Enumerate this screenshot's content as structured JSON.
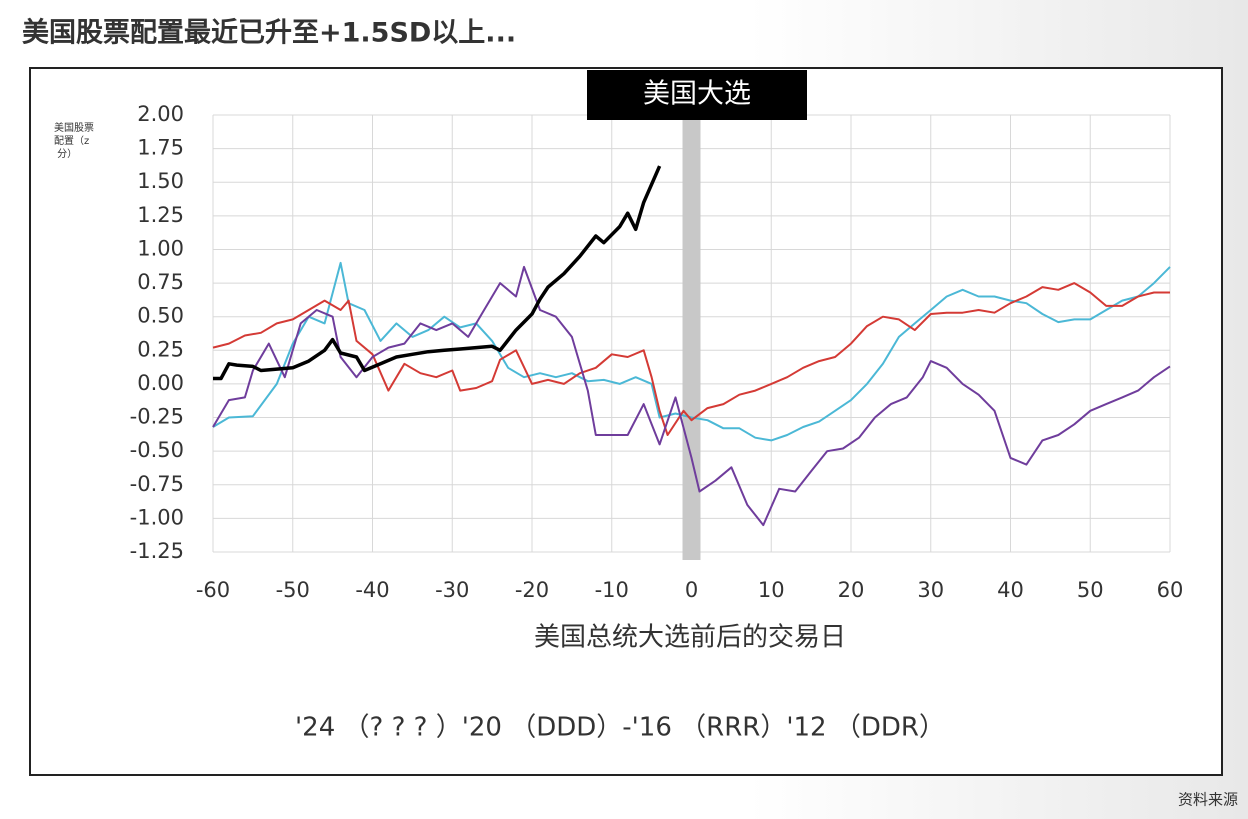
{
  "chart_data": {
    "type": "line",
    "title": "美国股票配置最近已升至+1.5SD以上...",
    "ylabel": "美国股票配置（z 分）",
    "xlabel": "美国总统大选前后的交易日",
    "annotation": "美国大选",
    "legend_text": "'24 （? ? ? ）'20 （DDD）-'16 （RRR）'12 （DDR）",
    "source": "资料来源",
    "xlim": [
      -60,
      60
    ],
    "xticks": [
      -60,
      -50,
      -40,
      -30,
      -20,
      -10,
      0,
      10,
      20,
      30,
      40,
      50,
      60
    ],
    "ylim": [
      -1.25,
      2.0
    ],
    "yticks": [
      {
        "value": 2.0,
        "label": "2.00"
      },
      {
        "value": 1.75,
        "label": "1.75"
      },
      {
        "value": 1.5,
        "label": "1.50"
      },
      {
        "value": 1.25,
        "label": "1.25"
      },
      {
        "value": 1.0,
        "label": "1.00"
      },
      {
        "value": 0.75,
        "label": "0.75"
      },
      {
        "value": 0.5,
        "label": "0.50"
      },
      {
        "value": 0.25,
        "label": "0.25"
      },
      {
        "value": 0,
        "label": "0.00"
      },
      {
        "value": -0.25,
        "label": "-0.25"
      },
      {
        "value": -0.5,
        "label": "-0.50"
      },
      {
        "value": -0.75,
        "label": "-0.75"
      },
      {
        "value": -1.0,
        "label": "-1.00"
      },
      {
        "value": -1.25,
        "label": "-1.25"
      }
    ],
    "grid": true,
    "series": [
      {
        "color": "#4bb8d6",
        "x": [
          -60,
          -58,
          -55,
          -52,
          -50,
          -48,
          -46,
          -44,
          -43,
          -41,
          -39,
          -37,
          -35,
          -33,
          -31,
          -29,
          -27,
          -25,
          -23,
          -21,
          -19,
          -17,
          -15,
          -13,
          -11,
          -9,
          -7,
          -5,
          -4,
          -2,
          0,
          2,
          4,
          6,
          8,
          10,
          12,
          14,
          16,
          18,
          20,
          22,
          24,
          26,
          28,
          30,
          32,
          34,
          36,
          38,
          40,
          42,
          44,
          46,
          48,
          50,
          52,
          54,
          56,
          58,
          60
        ],
        "values": [
          -0.32,
          -0.25,
          -0.24,
          0.0,
          0.3,
          0.5,
          0.45,
          0.9,
          0.6,
          0.55,
          0.32,
          0.45,
          0.35,
          0.4,
          0.5,
          0.42,
          0.45,
          0.32,
          0.12,
          0.05,
          0.08,
          0.05,
          0.08,
          0.02,
          0.03,
          0.0,
          0.05,
          0.0,
          -0.25,
          -0.22,
          -0.25,
          -0.27,
          -0.33,
          -0.33,
          -0.4,
          -0.42,
          -0.38,
          -0.32,
          -0.28,
          -0.2,
          -0.12,
          0.0,
          0.15,
          0.35,
          0.45,
          0.55,
          0.65,
          0.7,
          0.65,
          0.65,
          0.62,
          0.6,
          0.52,
          0.46,
          0.48,
          0.48,
          0.55,
          0.62,
          0.65,
          0.75,
          0.87
        ]
      },
      {
        "color": "#d43a35",
        "x": [
          -60,
          -58,
          -56,
          -54,
          -52,
          -50,
          -48,
          -46,
          -44,
          -43,
          -42,
          -40,
          -38,
          -36,
          -34,
          -32,
          -30,
          -29,
          -27,
          -25,
          -24,
          -22,
          -20,
          -18,
          -16,
          -14,
          -12,
          -10,
          -8,
          -6,
          -5,
          -4,
          -3,
          -1,
          0,
          2,
          4,
          6,
          8,
          10,
          12,
          14,
          16,
          18,
          20,
          22,
          24,
          26,
          28,
          30,
          32,
          34,
          36,
          38,
          40,
          42,
          44,
          46,
          48,
          50,
          52,
          54,
          56,
          58,
          60
        ],
        "values": [
          0.27,
          0.3,
          0.36,
          0.38,
          0.45,
          0.48,
          0.55,
          0.62,
          0.55,
          0.62,
          0.32,
          0.22,
          -0.05,
          0.15,
          0.08,
          0.05,
          0.1,
          -0.05,
          -0.03,
          0.02,
          0.18,
          0.25,
          0.0,
          0.03,
          0.0,
          0.08,
          0.12,
          0.22,
          0.2,
          0.25,
          0.05,
          -0.2,
          -0.38,
          -0.2,
          -0.27,
          -0.18,
          -0.15,
          -0.08,
          -0.05,
          0.0,
          0.05,
          0.12,
          0.17,
          0.2,
          0.3,
          0.43,
          0.5,
          0.48,
          0.4,
          0.52,
          0.53,
          0.53,
          0.55,
          0.53,
          0.6,
          0.65,
          0.72,
          0.7,
          0.75,
          0.68,
          0.58,
          0.58,
          0.65,
          0.68,
          0.68
        ]
      },
      {
        "color": "#6f3d9c",
        "x": [
          -60,
          -58,
          -56,
          -55,
          -53,
          -51,
          -49,
          -47,
          -45,
          -44,
          -42,
          -40,
          -38,
          -36,
          -34,
          -32,
          -30,
          -28,
          -26,
          -24,
          -22,
          -21,
          -19,
          -17,
          -15,
          -13,
          -12,
          -10,
          -8,
          -6,
          -4,
          -2,
          0,
          1,
          3,
          5,
          7,
          9,
          11,
          13,
          15,
          17,
          19,
          21,
          23,
          25,
          27,
          29,
          30,
          32,
          34,
          36,
          38,
          40,
          42,
          44,
          46,
          48,
          50,
          52,
          54,
          56,
          58,
          60
        ],
        "values": [
          -0.32,
          -0.12,
          -0.1,
          0.1,
          0.3,
          0.05,
          0.45,
          0.55,
          0.5,
          0.2,
          0.05,
          0.2,
          0.27,
          0.3,
          0.45,
          0.4,
          0.45,
          0.35,
          0.55,
          0.75,
          0.65,
          0.87,
          0.55,
          0.5,
          0.35,
          -0.05,
          -0.38,
          -0.38,
          -0.38,
          -0.15,
          -0.45,
          -0.1,
          -0.55,
          -0.8,
          -0.72,
          -0.62,
          -0.9,
          -1.05,
          -0.78,
          -0.8,
          -0.65,
          -0.5,
          -0.48,
          -0.4,
          -0.25,
          -0.15,
          -0.1,
          0.05,
          0.17,
          0.12,
          0.0,
          -0.08,
          -0.2,
          -0.55,
          -0.6,
          -0.42,
          -0.38,
          -0.3,
          -0.2,
          -0.15,
          -0.1,
          -0.05,
          0.05,
          0.13
        ]
      },
      {
        "color": "#000000",
        "x": [
          -60,
          -59,
          -58,
          -57,
          -55,
          -54,
          -52,
          -50,
          -48,
          -46,
          -45,
          -44,
          -42,
          -41,
          -39,
          -37,
          -35,
          -33,
          -31,
          -29,
          -27,
          -25,
          -24,
          -22,
          -20,
          -19,
          -18,
          -16,
          -14,
          -12,
          -11,
          -9,
          -8,
          -7,
          -6,
          -4
        ],
        "values": [
          0.04,
          0.04,
          0.15,
          0.14,
          0.13,
          0.1,
          0.11,
          0.12,
          0.17,
          0.25,
          0.33,
          0.23,
          0.2,
          0.1,
          0.15,
          0.2,
          0.22,
          0.24,
          0.25,
          0.26,
          0.27,
          0.28,
          0.25,
          0.4,
          0.52,
          0.63,
          0.72,
          0.82,
          0.95,
          1.1,
          1.05,
          1.17,
          1.27,
          1.15,
          1.35,
          1.62
        ]
      }
    ]
  }
}
